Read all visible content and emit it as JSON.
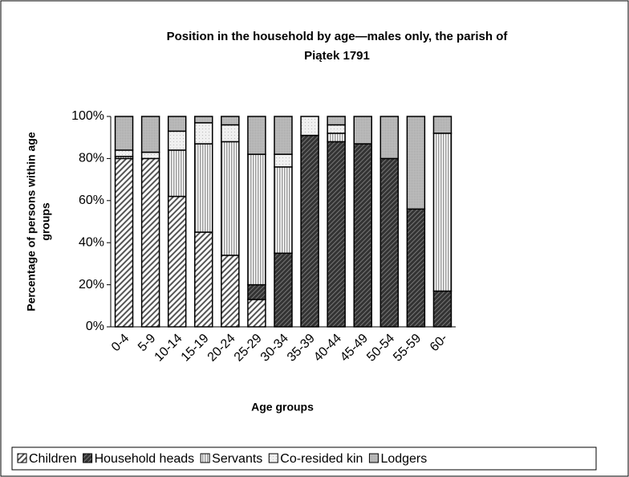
{
  "chart_data": {
    "type": "stacked_bar",
    "title": [
      "Position in the household by age—males only, the parish of",
      "Piątek 1791"
    ],
    "y_label": [
      "Percentage of persons within age",
      "groups"
    ],
    "x_label": "Age groups",
    "categories": [
      "0-4",
      "5-9",
      "10-14",
      "15-19",
      "20-24",
      "25-29",
      "30-34",
      "35-39",
      "40-44",
      "45-49",
      "50-54",
      "55-59",
      "60-"
    ],
    "series": [
      {
        "name": "Children",
        "color": "#555555",
        "values": [
          80,
          80,
          62,
          45,
          34,
          13,
          0,
          0,
          0,
          0,
          0,
          0,
          0
        ]
      },
      {
        "name": "Household heads",
        "color": "#333333",
        "values": [
          0,
          0,
          0,
          0,
          0,
          7,
          35,
          91,
          88,
          87,
          80,
          56,
          17
        ]
      },
      {
        "name": "Servants",
        "color": "#9a9a9a",
        "values": [
          1,
          0,
          22,
          42,
          54,
          62,
          41,
          0,
          4,
          0,
          0,
          0,
          75
        ]
      },
      {
        "name": "Co-resided kin",
        "color": "#f0f0f0",
        "values": [
          3,
          3,
          9,
          10,
          8,
          0,
          6,
          9,
          4,
          0,
          0,
          0,
          0
        ]
      },
      {
        "name": "Lodgers",
        "color": "#c0c0c0",
        "values": [
          16,
          17,
          7,
          3,
          4,
          18,
          18,
          0,
          4,
          13,
          20,
          44,
          8
        ]
      }
    ],
    "ylim": [
      0,
      100
    ],
    "yticks": [
      {
        "value": 0,
        "label": "0%"
      },
      {
        "value": 20,
        "label": "20%"
      },
      {
        "value": 40,
        "label": "40%"
      },
      {
        "value": 60,
        "label": "60%"
      },
      {
        "value": 80,
        "label": "80%"
      },
      {
        "value": 100,
        "label": "100%"
      }
    ],
    "legend": "bottom"
  }
}
